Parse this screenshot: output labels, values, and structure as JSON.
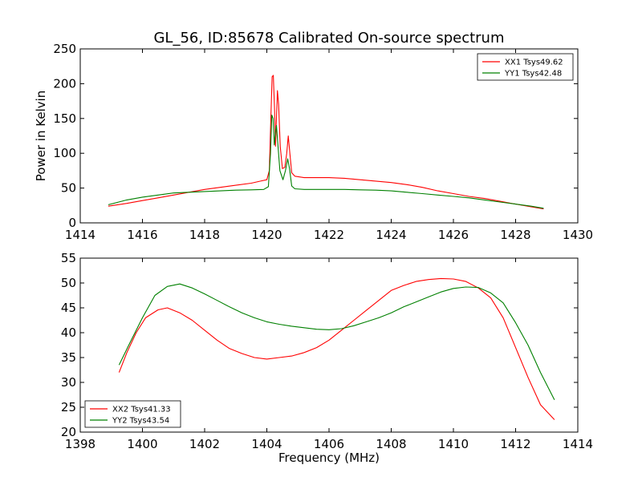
{
  "title": "GL_56, ID:85678 Calibrated On-source spectrum",
  "chart_data": [
    {
      "type": "line",
      "ylabel": "Power in Kelvin",
      "xlabel": "",
      "xlim": [
        1414,
        1430
      ],
      "ylim": [
        0,
        250
      ],
      "xticks": [
        1414,
        1416,
        1418,
        1420,
        1422,
        1424,
        1426,
        1428,
        1430
      ],
      "yticks": [
        0,
        50,
        100,
        150,
        200,
        250
      ],
      "legend_position": "top-right",
      "series": [
        {
          "name": "XX1 Tsys49.62",
          "color": "#ff0000",
          "points": [
            [
              1414.9,
              24
            ],
            [
              1415.5,
              28
            ],
            [
              1416.0,
              32
            ],
            [
              1416.5,
              36
            ],
            [
              1417.0,
              40
            ],
            [
              1417.5,
              44
            ],
            [
              1418.0,
              48
            ],
            [
              1418.5,
              51
            ],
            [
              1419.0,
              54
            ],
            [
              1419.5,
              57
            ],
            [
              1419.8,
              60
            ],
            [
              1420.0,
              62
            ],
            [
              1420.08,
              75
            ],
            [
              1420.13,
              150
            ],
            [
              1420.17,
              210
            ],
            [
              1420.21,
              212
            ],
            [
              1420.25,
              160
            ],
            [
              1420.28,
              110
            ],
            [
              1420.31,
              150
            ],
            [
              1420.34,
              190
            ],
            [
              1420.38,
              170
            ],
            [
              1420.43,
              110
            ],
            [
              1420.5,
              78
            ],
            [
              1420.58,
              80
            ],
            [
              1420.64,
              100
            ],
            [
              1420.69,
              125
            ],
            [
              1420.74,
              100
            ],
            [
              1420.8,
              72
            ],
            [
              1420.9,
              67
            ],
            [
              1421.2,
              65
            ],
            [
              1421.5,
              65
            ],
            [
              1422.0,
              65
            ],
            [
              1422.5,
              64
            ],
            [
              1423.0,
              62
            ],
            [
              1423.5,
              60
            ],
            [
              1424.0,
              58
            ],
            [
              1424.5,
              55
            ],
            [
              1425.0,
              51
            ],
            [
              1425.5,
              46
            ],
            [
              1426.0,
              42
            ],
            [
              1426.5,
              38
            ],
            [
              1427.0,
              35
            ],
            [
              1427.5,
              31
            ],
            [
              1428.0,
              27
            ],
            [
              1428.5,
              23
            ],
            [
              1428.9,
              20
            ]
          ]
        },
        {
          "name": "YY1 Tsys42.48",
          "color": "#008000",
          "points": [
            [
              1414.9,
              26
            ],
            [
              1415.5,
              33
            ],
            [
              1416.0,
              37
            ],
            [
              1416.5,
              40
            ],
            [
              1417.0,
              43
            ],
            [
              1417.5,
              44
            ],
            [
              1418.0,
              45
            ],
            [
              1418.5,
              46
            ],
            [
              1419.0,
              47
            ],
            [
              1419.5,
              47.5
            ],
            [
              1419.9,
              48
            ],
            [
              1420.05,
              52
            ],
            [
              1420.12,
              100
            ],
            [
              1420.16,
              155
            ],
            [
              1420.2,
              150
            ],
            [
              1420.24,
              112
            ],
            [
              1420.28,
              130
            ],
            [
              1420.31,
              140
            ],
            [
              1420.35,
              115
            ],
            [
              1420.42,
              75
            ],
            [
              1420.52,
              62
            ],
            [
              1420.6,
              75
            ],
            [
              1420.67,
              92
            ],
            [
              1420.73,
              78
            ],
            [
              1420.8,
              53
            ],
            [
              1420.9,
              49
            ],
            [
              1421.2,
              48
            ],
            [
              1422.0,
              48
            ],
            [
              1422.5,
              48
            ],
            [
              1423.0,
              47.5
            ],
            [
              1423.5,
              47
            ],
            [
              1424.0,
              46
            ],
            [
              1424.5,
              44
            ],
            [
              1425.0,
              42
            ],
            [
              1425.5,
              40
            ],
            [
              1426.0,
              38
            ],
            [
              1426.5,
              36
            ],
            [
              1427.0,
              33
            ],
            [
              1427.5,
              30
            ],
            [
              1428.0,
              27
            ],
            [
              1428.5,
              24
            ],
            [
              1428.9,
              21
            ]
          ]
        }
      ]
    },
    {
      "type": "line",
      "xlabel": "Frequency (MHz)",
      "ylabel": "",
      "xlim": [
        1398,
        1414
      ],
      "ylim": [
        20,
        55
      ],
      "xticks": [
        1398,
        1400,
        1402,
        1404,
        1406,
        1408,
        1410,
        1412,
        1414
      ],
      "yticks": [
        20,
        25,
        30,
        35,
        40,
        45,
        50,
        55
      ],
      "legend_position": "bottom-left",
      "series": [
        {
          "name": "XX2 Tsys41.33",
          "color": "#ff0000",
          "points": [
            [
              1399.25,
              32
            ],
            [
              1399.5,
              36
            ],
            [
              1399.8,
              40
            ],
            [
              1400.1,
              43
            ],
            [
              1400.5,
              44.6
            ],
            [
              1400.8,
              45
            ],
            [
              1401.2,
              44
            ],
            [
              1401.6,
              42.5
            ],
            [
              1402.0,
              40.5
            ],
            [
              1402.4,
              38.5
            ],
            [
              1402.8,
              36.8
            ],
            [
              1403.2,
              35.8
            ],
            [
              1403.6,
              35
            ],
            [
              1404.0,
              34.7
            ],
            [
              1404.4,
              35
            ],
            [
              1404.8,
              35.3
            ],
            [
              1405.2,
              36
            ],
            [
              1405.6,
              37
            ],
            [
              1406.0,
              38.5
            ],
            [
              1406.4,
              40.5
            ],
            [
              1406.8,
              42.5
            ],
            [
              1407.2,
              44.5
            ],
            [
              1407.6,
              46.5
            ],
            [
              1408.0,
              48.5
            ],
            [
              1408.4,
              49.5
            ],
            [
              1408.8,
              50.3
            ],
            [
              1409.2,
              50.7
            ],
            [
              1409.6,
              50.9
            ],
            [
              1410.0,
              50.8
            ],
            [
              1410.4,
              50.3
            ],
            [
              1410.8,
              49
            ],
            [
              1411.2,
              47
            ],
            [
              1411.6,
              43
            ],
            [
              1412.0,
              37
            ],
            [
              1412.4,
              31
            ],
            [
              1412.8,
              25.5
            ],
            [
              1413.25,
              22.5
            ]
          ]
        },
        {
          "name": "YY2 Tsys43.54",
          "color": "#008000",
          "points": [
            [
              1399.25,
              33.5
            ],
            [
              1399.6,
              38
            ],
            [
              1400.0,
              43
            ],
            [
              1400.4,
              47.5
            ],
            [
              1400.8,
              49.3
            ],
            [
              1401.2,
              49.8
            ],
            [
              1401.6,
              49
            ],
            [
              1402.0,
              47.8
            ],
            [
              1402.4,
              46.5
            ],
            [
              1402.8,
              45.2
            ],
            [
              1403.2,
              44
            ],
            [
              1403.6,
              43
            ],
            [
              1404.0,
              42.2
            ],
            [
              1404.4,
              41.7
            ],
            [
              1404.8,
              41.3
            ],
            [
              1405.2,
              41
            ],
            [
              1405.6,
              40.7
            ],
            [
              1406.0,
              40.6
            ],
            [
              1406.4,
              40.8
            ],
            [
              1406.8,
              41.4
            ],
            [
              1407.2,
              42.2
            ],
            [
              1407.6,
              43
            ],
            [
              1408.0,
              44
            ],
            [
              1408.4,
              45.2
            ],
            [
              1408.8,
              46.2
            ],
            [
              1409.2,
              47.2
            ],
            [
              1409.6,
              48.2
            ],
            [
              1410.0,
              48.9
            ],
            [
              1410.4,
              49.2
            ],
            [
              1410.8,
              49.1
            ],
            [
              1411.2,
              48
            ],
            [
              1411.6,
              46
            ],
            [
              1412.0,
              42
            ],
            [
              1412.4,
              37.5
            ],
            [
              1412.8,
              32
            ],
            [
              1413.25,
              26.5
            ]
          ]
        }
      ]
    }
  ]
}
